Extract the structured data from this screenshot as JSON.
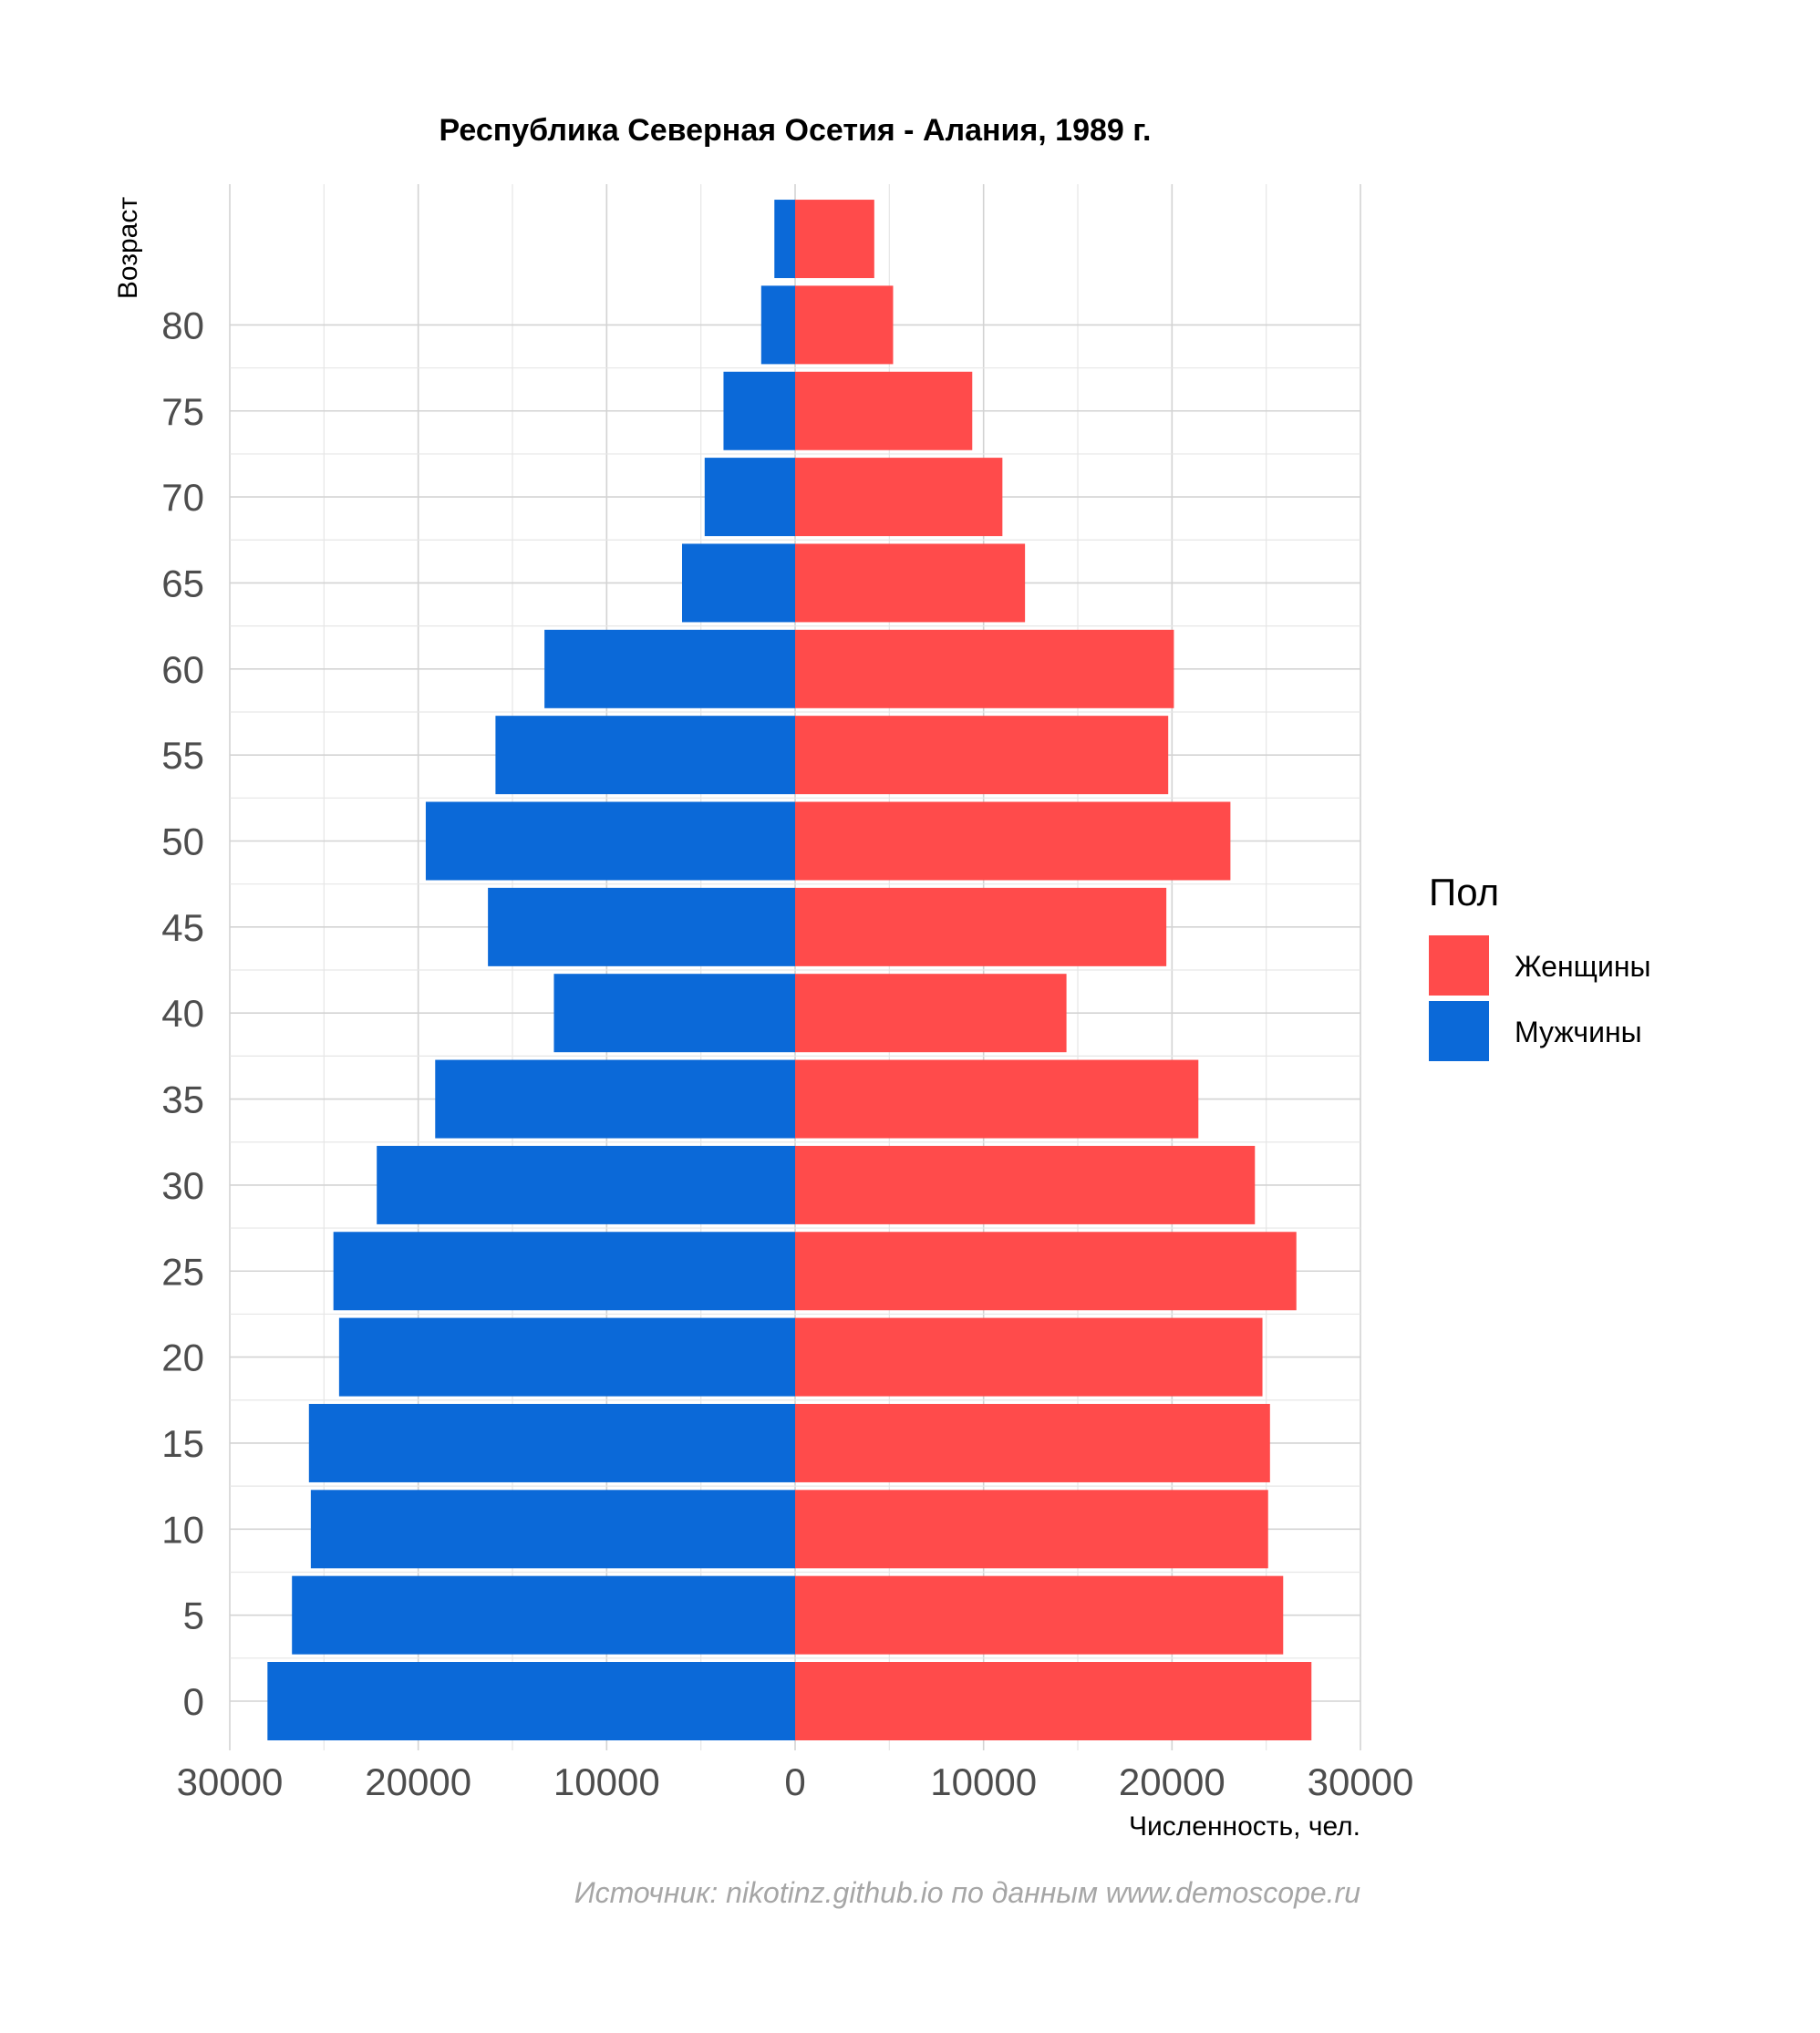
{
  "chart_data": {
    "type": "bar",
    "orientation": "horizontal",
    "title": "Республика Северная Осетия - Алания, 1989 г.",
    "xlabel": "Численность, чел.",
    "ylabel": "Возраст",
    "caption": "Источник: nikotinz.github.io по данным www.demoscope.ru",
    "xlim": [
      -30000,
      30000
    ],
    "x_ticks": [
      -30000,
      -20000,
      -10000,
      0,
      10000,
      20000,
      30000
    ],
    "x_tick_labels": [
      "30000",
      "20000",
      "10000",
      "0",
      "10000",
      "20000",
      "30000"
    ],
    "y_ticks": [
      0,
      5,
      10,
      15,
      20,
      25,
      30,
      35,
      40,
      45,
      50,
      55,
      60,
      65,
      70,
      75,
      80
    ],
    "y_tick_labels": [
      "0",
      "5",
      "10",
      "15",
      "20",
      "25",
      "30",
      "35",
      "40",
      "45",
      "50",
      "55",
      "60",
      "65",
      "70",
      "75",
      "80"
    ],
    "age_groups": [
      0,
      5,
      10,
      15,
      20,
      25,
      30,
      35,
      40,
      45,
      50,
      55,
      60,
      65,
      70,
      75,
      80,
      85
    ],
    "grid": true,
    "legend": {
      "title": "Пол",
      "position": "right",
      "entries": [
        {
          "label": "Женщины",
          "color": "#ff4b4b"
        },
        {
          "label": "Мужчины",
          "color": "#0b69d8"
        }
      ]
    },
    "series": [
      {
        "name": "Мужчины",
        "color": "#0b69d8",
        "side": "left",
        "values": [
          28000,
          26700,
          25700,
          25800,
          24200,
          24500,
          22200,
          19100,
          12800,
          16300,
          19600,
          15900,
          13300,
          6000,
          4800,
          3800,
          1800,
          1100
        ]
      },
      {
        "name": "Женщины",
        "color": "#ff4b4b",
        "side": "right",
        "values": [
          27400,
          25900,
          25100,
          25200,
          24800,
          26600,
          24400,
          21400,
          14400,
          19700,
          23100,
          19800,
          20100,
          12200,
          11000,
          9400,
          5200,
          4200
        ]
      }
    ]
  }
}
